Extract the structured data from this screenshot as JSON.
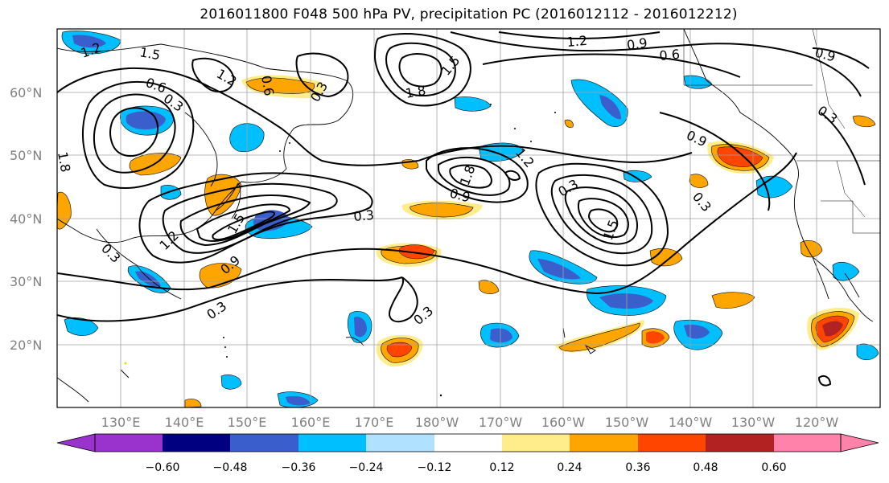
{
  "title": "2016011800 F048 500 hPa PV, precipitation PC (2016012112 - 2016012212)",
  "lat_labels": [
    "60°N",
    "50°N",
    "40°N",
    "30°N",
    "20°N"
  ],
  "lon_labels": [
    "130°E",
    "140°E",
    "150°E",
    "160°E",
    "170°E",
    "180°W",
    "170°W",
    "160°W",
    "150°W",
    "140°W",
    "130°W",
    "120°W"
  ],
  "colorbar": {
    "ticks": [
      "−0.60",
      "−0.48",
      "−0.36",
      "−0.24",
      "−0.12",
      "0.12",
      "0.24",
      "0.36",
      "0.48",
      "0.60"
    ],
    "colors": [
      "#9a32cd",
      "#000080",
      "#3a5fcd",
      "#00bfff",
      "#b0e2ff",
      "#ffffff",
      "#ffec8b",
      "#ffa500",
      "#ff4500",
      "#b22222",
      "#ff82ab"
    ]
  },
  "contour_labels": [
    "1.2",
    "1.5",
    "0.6",
    "0.3",
    "1.8",
    "1.2",
    "0.9",
    "0.6",
    "0.3",
    "1.8",
    "1.5",
    "0.9",
    "1.2",
    "0.9",
    "0.3",
    "0.3",
    "1.5",
    "0.3",
    "0.9",
    "1.8",
    "0.3",
    "0.3",
    "0.9",
    "1.2",
    "0.6",
    "0.3",
    "0.3",
    "1.2",
    "1.5"
  ]
}
